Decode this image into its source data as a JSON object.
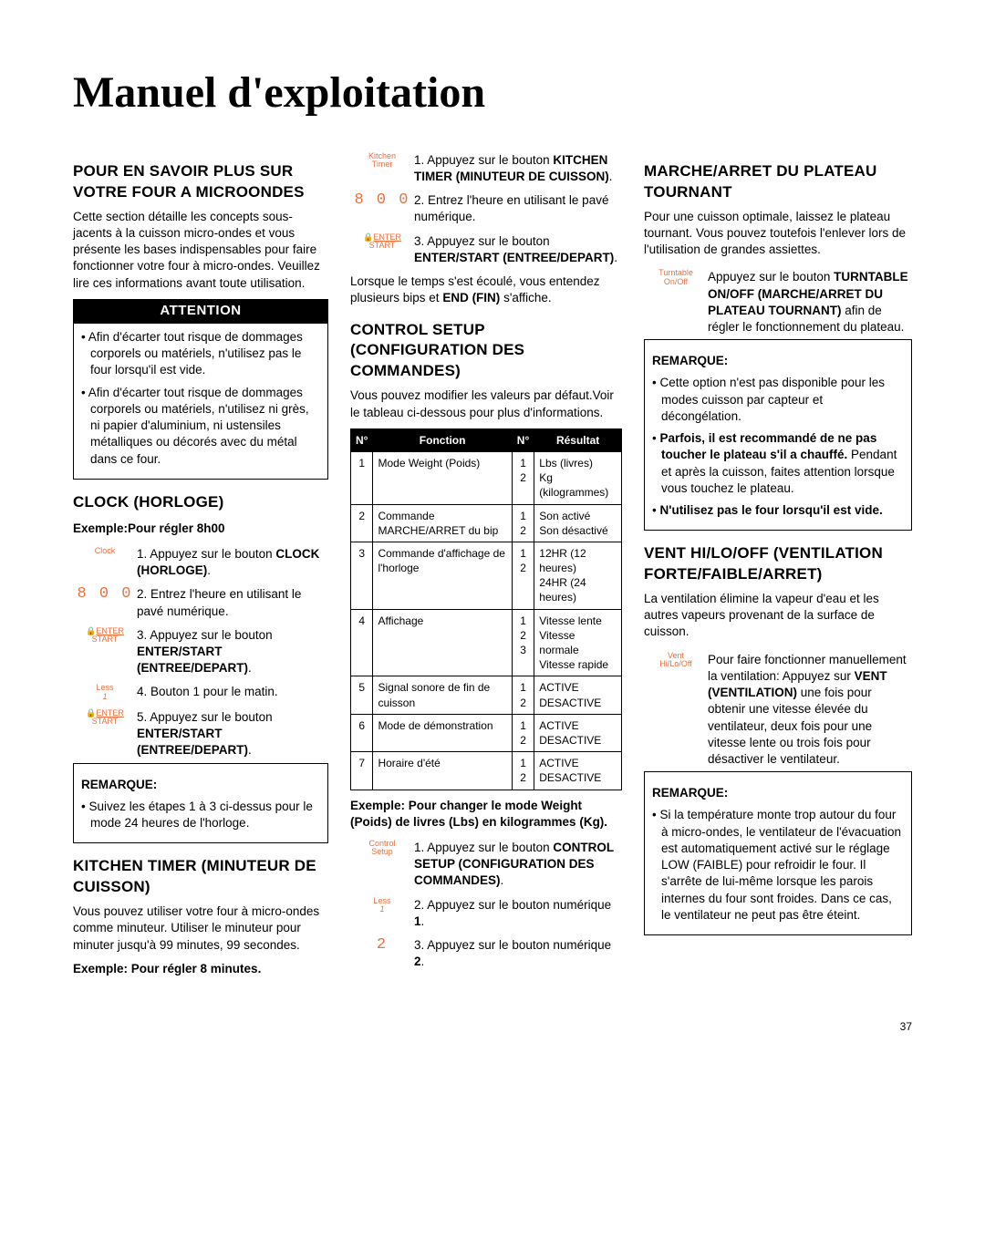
{
  "page": {
    "title": "Manuel d'exploitation",
    "pageNumber": "37"
  },
  "colors": {
    "accent": "#e97040"
  },
  "col1": {
    "sec1_title": "POUR EN SAVOIR PLUS SUR VOTRE FOUR A MICROONDES",
    "sec1_body": "Cette section détaille les concepts sous-jacents à la cuisson micro-ondes et vous présente les bases indispensables pour faire fonctionner votre four à micro-ondes. Veuillez lire ces informations avant toute utilisation.",
    "attention_label": "ATTENTION",
    "attention_items": [
      "Afin d'écarter tout risque de dommages corporels ou matériels, n'utilisez pas le four lorsqu'il est vide.",
      "Afin d'écarter tout risque de dommages corporels ou matériels, n'utilisez ni grès, ni papier d'aluminium, ni ustensiles métalliques ou décorés avec du métal dans ce four."
    ],
    "clock_title": "CLOCK (HORLOGE)",
    "clock_example": "Exemple:Pour régler 8h00",
    "clock_steps": [
      {
        "icon": "Clock",
        "text_pre": "1. Appuyez sur le bouton ",
        "bold": "CLOCK (HORLOGE)",
        "text_post": "."
      },
      {
        "icon_seg": "8 0 0",
        "text": "2. Entrez l'heure en utilisant le pavé numérique."
      },
      {
        "icon_es": true,
        "text_pre": "3. Appuyez sur le bouton ",
        "bold": "ENTER/START (ENTREE/DEPART)",
        "text_post": "."
      },
      {
        "icon_less": "Less\n1",
        "text": "4. Bouton 1 pour le matin."
      },
      {
        "icon_es": true,
        "text_pre": "5. Appuyez sur le bouton ",
        "bold": "ENTER/START (ENTREE/DEPART)",
        "text_post": "."
      }
    ],
    "clock_note_title": "REMARQUE:",
    "clock_note_item": "Suivez les étapes 1 à 3 ci-dessus pour le mode 24 heures de l'horloge.",
    "kt_title": "KITCHEN TIMER (MINUTEUR DE CUISSON)",
    "kt_body": "Vous pouvez utiliser votre four à micro-ondes comme minuteur.  Utiliser le minuteur pour minuter jusqu'à 99 minutes, 99 secondes.",
    "kt_example": "Exemple: Pour régler 8 minutes."
  },
  "col2": {
    "kt_steps": [
      {
        "icon": "Kitchen\nTimer",
        "text_pre": "1. Appuyez sur le bouton ",
        "bold": "KITCHEN TIMER (MINUTEUR DE CUISSON)",
        "text_post": "."
      },
      {
        "icon_seg": "8 0 0",
        "text": "2. Entrez l'heure en utilisant le pavé numérique."
      },
      {
        "icon_es": true,
        "text_pre": "3. Appuyez sur le bouton ",
        "bold": "ENTER/START (ENTREE/DEPART)",
        "text_post": "."
      }
    ],
    "kt_after_pre": "Lorsque le temps s'est écoulé, vous entendez plusieurs bips et ",
    "kt_after_bold": "END (FIN)",
    "kt_after_post": " s'affiche.",
    "cs_title": "CONTROL SETUP (CONFIGURATION DES COMMANDES)",
    "cs_body": "Vous pouvez modifier les valeurs par défaut.Voir le tableau ci-dessous pour plus d'informations.",
    "cs_table": {
      "headers": [
        "N°",
        "Fonction",
        "N°",
        "Résultat"
      ],
      "rows": [
        [
          "1",
          "Mode Weight (Poids)",
          "1\n2",
          "Lbs (livres)\nKg (kilogrammes)"
        ],
        [
          "2",
          "Commande MARCHE/ARRET du bip",
          "1\n2",
          "Son activé\nSon désactivé"
        ],
        [
          "3",
          "Commande d'affichage de l'horloge",
          "1\n2",
          "12HR (12 heures)\n24HR (24 heures)"
        ],
        [
          "4",
          "Affichage",
          "1\n2\n3",
          "Vitesse lente\nVitesse normale\nVitesse rapide"
        ],
        [
          "5",
          "Signal sonore de fin de cuisson",
          "1\n2",
          "ACTIVE\nDESACTIVE"
        ],
        [
          "6",
          "Mode de démonstration",
          "1\n2",
          "ACTIVE\nDESACTIVE"
        ],
        [
          "7",
          "Horaire d'été",
          "1\n2",
          "ACTIVE\nDESACTIVE"
        ]
      ]
    },
    "cs_example": "Exemple: Pour changer le mode Weight (Poids) de livres (Lbs) en kilogrammes (Kg).",
    "cs_steps": [
      {
        "icon": "Control\nSetup",
        "text_pre": "1. Appuyez sur le bouton ",
        "bold": "CONTROL SETUP (CONFIGURATION DES COMMANDES)",
        "text_post": "."
      },
      {
        "icon_less": "Less\n1",
        "text_pre": "2. Appuyez sur le bouton numérique ",
        "bold": "1",
        "text_post": "."
      },
      {
        "icon_seg": "2",
        "text_pre": "3. Appuyez sur le bouton numérique ",
        "bold": "2",
        "text_post": "."
      }
    ]
  },
  "col3": {
    "tt_title": "MARCHE/ARRET DU PLATEAU TOURNANT",
    "tt_body": "Pour une cuisson optimale, laissez le plateau tournant. Vous pouvez toutefois l'enlever lors de l'utilisation de grandes assiettes.",
    "tt_step_icon": "Turntable\nOn/Off",
    "tt_step_pre": "Appuyez sur le bouton ",
    "tt_step_bold": "TURNTABLE ON/OFF (MARCHE/ARRET DU PLATEAU TOURNANT)",
    "tt_step_post": " afin de régler le fonctionnement du plateau.",
    "tt_note_title": "REMARQUE:",
    "tt_note_items": [
      {
        "text": "Cette option n'est pas disponible pour les modes cuisson par capteur et décongélation."
      },
      {
        "bold1": "Parfois, il est recommandé de ne pas toucher le plateau s'il a chauffé.",
        "text": " Pendant et après la cuisson, faites attention lorsque vous touchez le plateau."
      },
      {
        "bold1": "N'utilisez pas le four lorsqu'il est vide."
      }
    ],
    "vent_title": "VENT HI/LO/OFF (VENTILATION FORTE/FAIBLE/ARRET)",
    "vent_body": "La ventilation élimine la vapeur d'eau et les autres vapeurs provenant de la surface de cuisson.",
    "vent_step_icon": "Vent\nHi/Lo/Off",
    "vent_step_pre": "Pour faire fonctionner manuellement la ventilation: Appuyez sur ",
    "vent_step_bold": "VENT (VENTILATION)",
    "vent_step_post": " une fois pour obtenir une vitesse élevée du ventilateur, deux fois pour une vitesse lente ou trois fois pour désactiver le ventilateur.",
    "vent_note_title": "REMARQUE:",
    "vent_note_item": "Si la température monte trop autour du four à micro-ondes, le ventilateur de l'évacuation est automatiquement activé sur le réglage LOW (FAIBLE) pour refroidir le four. Il s'arrête de lui-même lorsque les parois internes du four sont froides. Dans ce cas, le ventilateur ne peut pas être éteint."
  }
}
